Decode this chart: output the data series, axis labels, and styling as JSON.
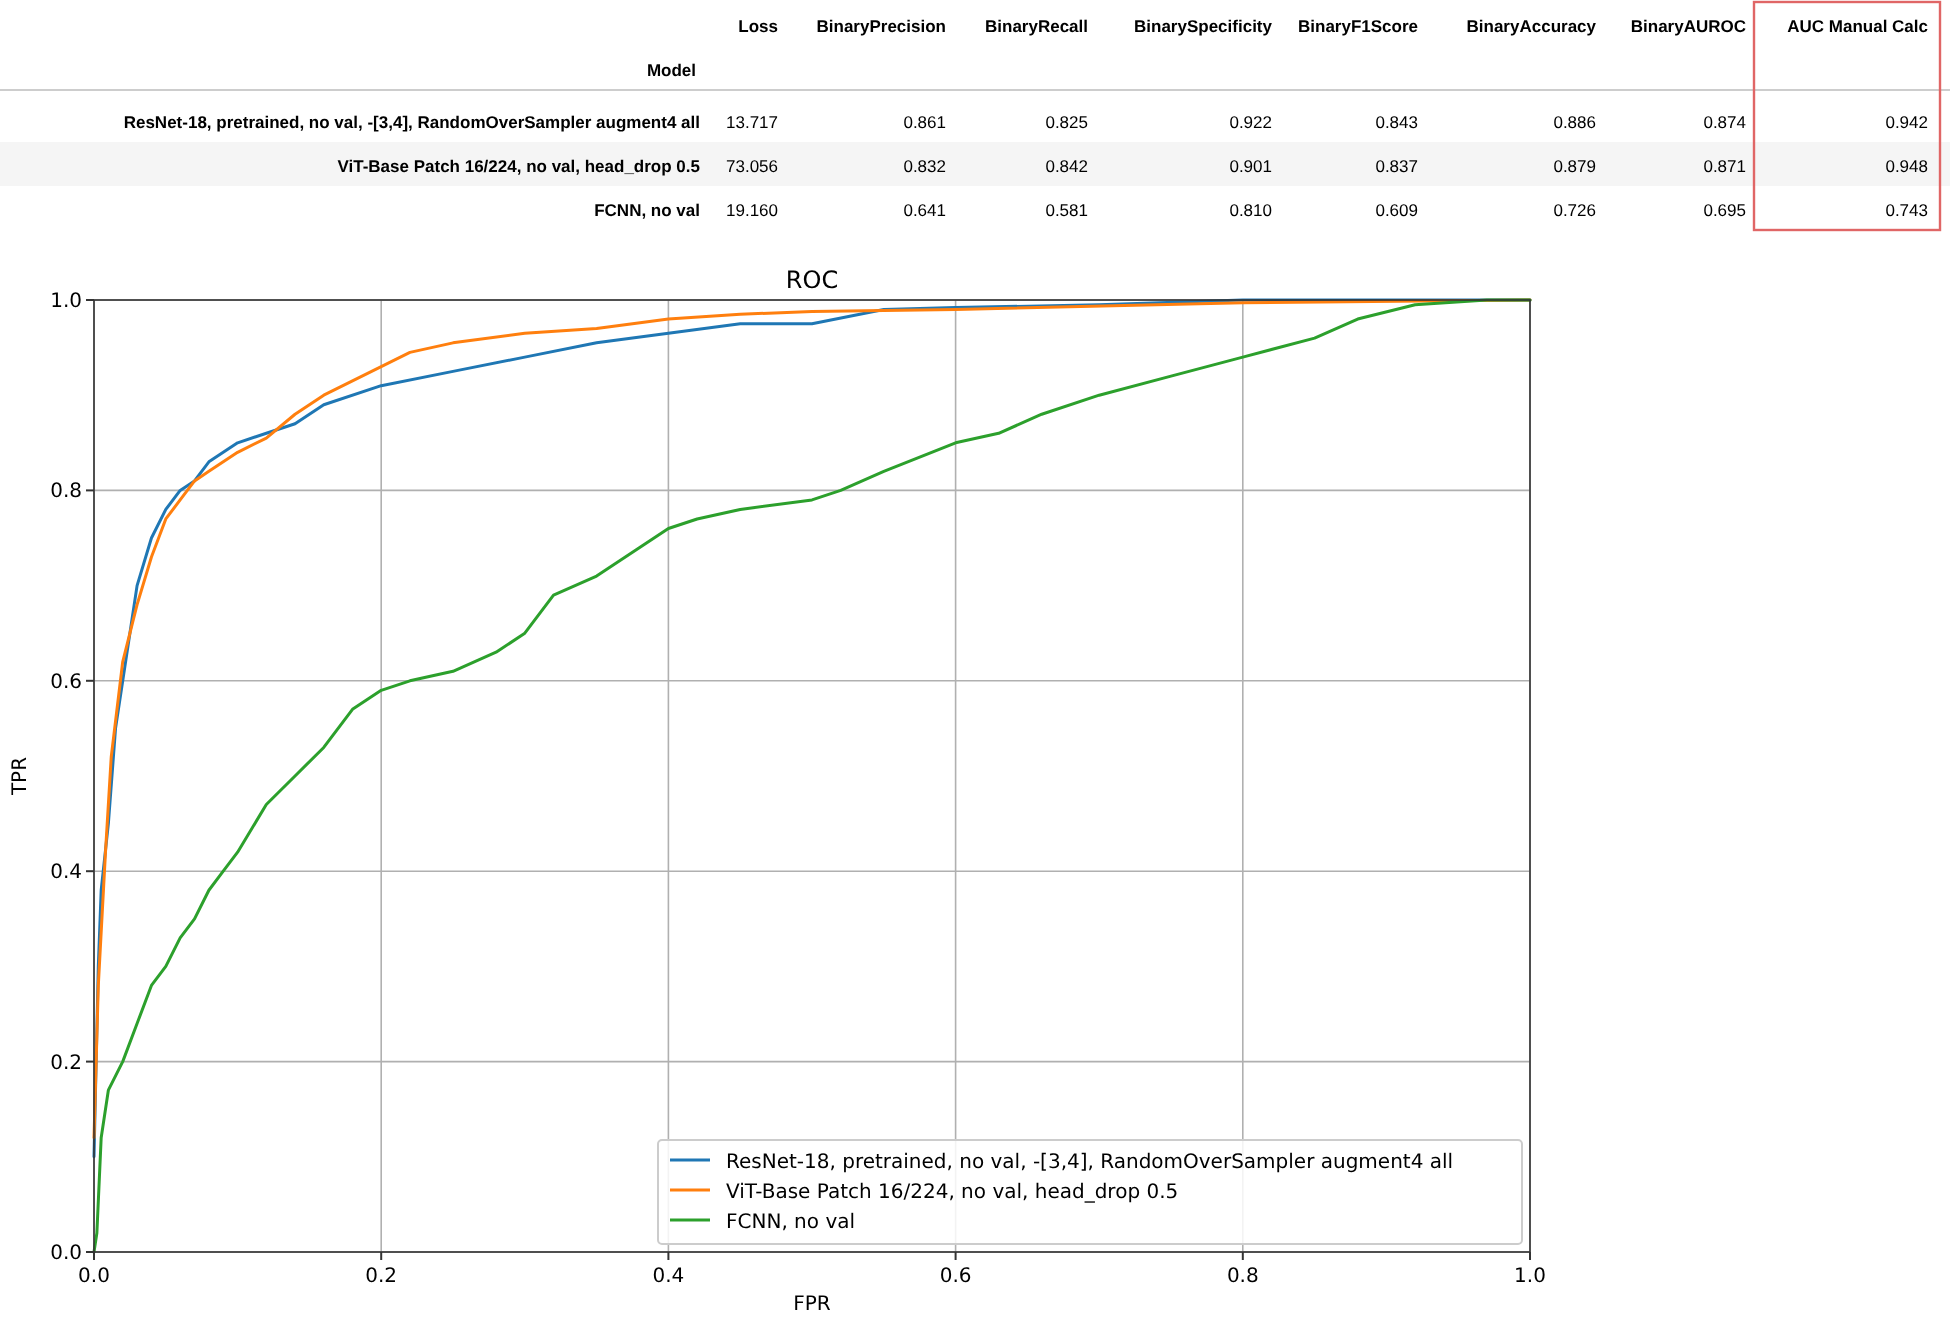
{
  "chart_data": [
    {
      "type": "other",
      "ylabel": "Model",
      "categories": [
        "Loss",
        "BinaryPrecision",
        "BinaryRecall",
        "BinarySpecificity",
        "BinaryF1Score",
        "BinaryAccuracy",
        "BinaryAUROC",
        "AUC Manual Calc"
      ],
      "y_categories": [
        "ResNet-18, pretrained, no val, -[3,4], RandomOverSampler augment4 all",
        "ViT-Base Patch 16/224, no val, head_drop 0.5",
        "FCNN, no val"
      ],
      "cell_labels": [
        [
          "13.717",
          "0.861",
          "0.825",
          "0.922",
          "0.843",
          "0.886",
          "0.874",
          "0.942"
        ],
        [
          "73.056",
          "0.832",
          "0.842",
          "0.901",
          "0.837",
          "0.879",
          "0.871",
          "0.948"
        ],
        [
          "19.160",
          "0.641",
          "0.581",
          "0.810",
          "0.609",
          "0.726",
          "0.695",
          "0.743"
        ]
      ]
    },
    {
      "type": "line",
      "title": "ROC",
      "xlabel": "FPR",
      "ylabel": "TPR",
      "xlim": [
        0,
        1
      ],
      "ylim": [
        0,
        1
      ],
      "xticks": [
        {
          "value": 0,
          "label": "0.0"
        },
        {
          "value": 0.2,
          "label": "0.2"
        },
        {
          "value": 0.4,
          "label": "0.4"
        },
        {
          "value": 0.6,
          "label": "0.6"
        },
        {
          "value": 0.8,
          "label": "0.8"
        },
        {
          "value": 1,
          "label": "1.0"
        }
      ],
      "yticks": [
        {
          "value": 0,
          "label": "0.0"
        },
        {
          "value": 0.2,
          "label": "0.2"
        },
        {
          "value": 0.4,
          "label": "0.4"
        },
        {
          "value": 0.6,
          "label": "0.6"
        },
        {
          "value": 0.8,
          "label": "0.8"
        },
        {
          "value": 1,
          "label": "1.0"
        }
      ],
      "grid": true,
      "legend": "bottom right",
      "series": [
        {
          "name": "ResNet-18, pretrained, no val, -[3,4], RandomOverSampler augment4 all",
          "color": "#1f77b4",
          "x": [
            0,
            0.003,
            0.005,
            0.01,
            0.015,
            0.02,
            0.025,
            0.03,
            0.04,
            0.05,
            0.06,
            0.07,
            0.08,
            0.1,
            0.12,
            0.14,
            0.16,
            0.2,
            0.25,
            0.3,
            0.35,
            0.4,
            0.45,
            0.5,
            0.55,
            0.6,
            0.7,
            0.8,
            1
          ],
          "values": [
            0.1,
            0.3,
            0.38,
            0.45,
            0.55,
            0.6,
            0.65,
            0.7,
            0.75,
            0.78,
            0.8,
            0.81,
            0.83,
            0.85,
            0.86,
            0.87,
            0.89,
            0.91,
            0.925,
            0.94,
            0.955,
            0.965,
            0.975,
            0.975,
            0.99,
            0.992,
            0.995,
            1,
            1
          ]
        },
        {
          "name": "ViT-Base Patch 16/224, no val, head_drop 0.5",
          "color": "#ff7f0e",
          "x": [
            0,
            0.003,
            0.008,
            0.012,
            0.02,
            0.03,
            0.04,
            0.05,
            0.06,
            0.07,
            0.08,
            0.1,
            0.12,
            0.14,
            0.16,
            0.2,
            0.22,
            0.25,
            0.3,
            0.35,
            0.4,
            0.45,
            0.5,
            0.6,
            0.8,
            1
          ],
          "values": [
            0.12,
            0.28,
            0.42,
            0.52,
            0.62,
            0.68,
            0.73,
            0.77,
            0.79,
            0.81,
            0.82,
            0.84,
            0.855,
            0.88,
            0.9,
            0.93,
            0.945,
            0.955,
            0.965,
            0.97,
            0.98,
            0.985,
            0.988,
            0.99,
            0.997,
            1
          ]
        },
        {
          "name": "FCNN, no val",
          "color": "#2ca02c",
          "x": [
            0,
            0.002,
            0.005,
            0.01,
            0.02,
            0.03,
            0.04,
            0.05,
            0.06,
            0.07,
            0.08,
            0.09,
            0.1,
            0.12,
            0.14,
            0.16,
            0.18,
            0.2,
            0.22,
            0.25,
            0.28,
            0.3,
            0.32,
            0.35,
            0.38,
            0.4,
            0.42,
            0.45,
            0.5,
            0.52,
            0.55,
            0.6,
            0.63,
            0.66,
            0.7,
            0.75,
            0.8,
            0.85,
            0.88,
            0.92,
            0.97,
            1
          ],
          "values": [
            0,
            0.02,
            0.12,
            0.17,
            0.2,
            0.24,
            0.28,
            0.3,
            0.33,
            0.35,
            0.38,
            0.4,
            0.42,
            0.47,
            0.5,
            0.53,
            0.57,
            0.59,
            0.6,
            0.61,
            0.63,
            0.65,
            0.69,
            0.71,
            0.74,
            0.76,
            0.77,
            0.78,
            0.79,
            0.8,
            0.82,
            0.85,
            0.86,
            0.88,
            0.9,
            0.92,
            0.94,
            0.96,
            0.98,
            0.995,
            1,
            1
          ]
        }
      ]
    }
  ]
}
